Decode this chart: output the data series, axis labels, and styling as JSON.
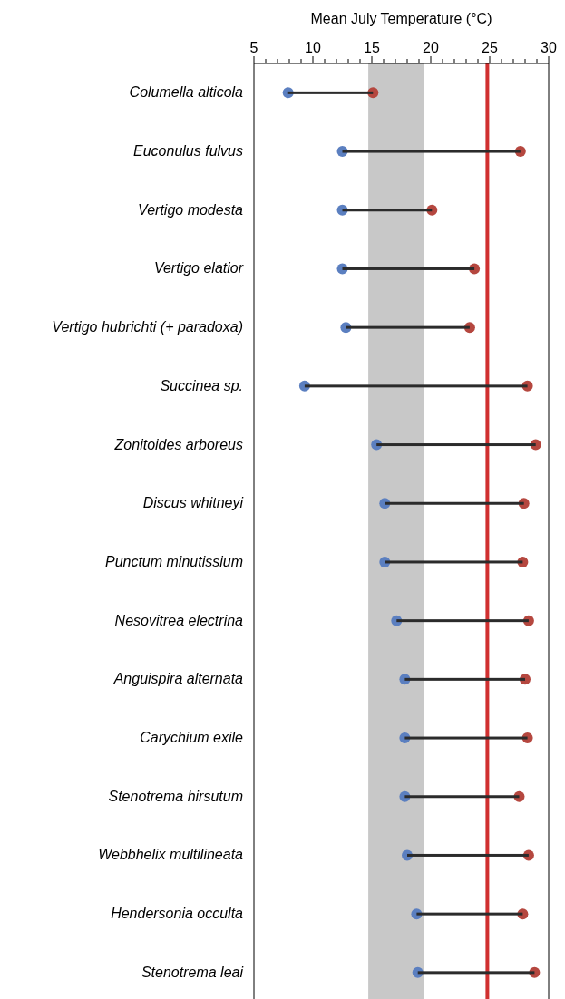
{
  "chart_data": {
    "type": "bar",
    "orientation": "horizontal",
    "xlabel": "Mean July Temperature (°C)",
    "categories": [
      "Columella alticola",
      "Euconulus fulvus",
      "Vertigo modesta",
      "Vertigo elatior",
      "Vertigo hubrichti (+ paradoxa)",
      "Succinea sp.",
      "Zonitoides arboreus",
      "Discus whitneyi",
      "Punctum minutissium",
      "Nesovitrea electrina",
      "Anguispira alternata",
      "Carychium exile",
      "Stenotrema hirsutum",
      "Webbhelix multilineata",
      "Hendersonia occulta",
      "Stenotrema leai"
    ],
    "series": [
      {
        "color": "#2b2b2b",
        "base": [
          7.9,
          12.5,
          12.5,
          12.5,
          12.8,
          9.3,
          15.4,
          16.1,
          16.1,
          17.1,
          17.8,
          17.8,
          17.8,
          18.0,
          18.8,
          18.9
        ],
        "values": [
          7.2,
          15.1,
          7.6,
          11.2,
          10.5,
          18.9,
          13.5,
          11.8,
          11.7,
          11.2,
          10.2,
          10.4,
          9.7,
          10.3,
          9.0,
          9.9
        ]
      },
      {
        "type": "scatter",
        "color": "#5b7fc0",
        "values": [
          7.9,
          12.5,
          12.5,
          12.5,
          12.8,
          9.3,
          15.4,
          16.1,
          16.1,
          17.1,
          17.8,
          17.8,
          17.8,
          18.0,
          18.8,
          18.9
        ]
      },
      {
        "type": "scatter",
        "color": "#b5473f",
        "values": [
          15.1,
          27.6,
          20.1,
          23.7,
          23.3,
          28.2,
          28.9,
          27.9,
          27.8,
          28.3,
          28.0,
          28.2,
          27.5,
          28.3,
          27.8,
          28.8
        ]
      }
    ],
    "marker": "circle",
    "xlim": [
      5,
      30
    ],
    "xticks": [
      5,
      {
        "value": 6,
        "label": null
      },
      {
        "value": 7,
        "label": null
      },
      {
        "value": 8,
        "label": null
      },
      {
        "value": 9,
        "label": null
      },
      10,
      {
        "value": 11,
        "label": null
      },
      {
        "value": 12,
        "label": null
      },
      {
        "value": 13,
        "label": null
      },
      {
        "value": 14,
        "label": null
      },
      15,
      {
        "value": 16,
        "label": null
      },
      {
        "value": 17,
        "label": null
      },
      {
        "value": 18,
        "label": null
      },
      {
        "value": 19,
        "label": null
      },
      20,
      {
        "value": 21,
        "label": null
      },
      {
        "value": 22,
        "label": null
      },
      {
        "value": 23,
        "label": null
      },
      {
        "value": 24,
        "label": null
      },
      25,
      {
        "value": 26,
        "label": null
      },
      {
        "value": 27,
        "label": null
      },
      {
        "value": 28,
        "label": null
      },
      {
        "value": 29,
        "label": null
      },
      30
    ],
    "ref_lines": [
      {
        "axis": "x",
        "value": 24.8,
        "color": "#d03030"
      }
    ],
    "bands": [
      {
        "axis": "x",
        "from": 14.7,
        "to": 19.4,
        "color": "#c8c8c8"
      }
    ]
  }
}
